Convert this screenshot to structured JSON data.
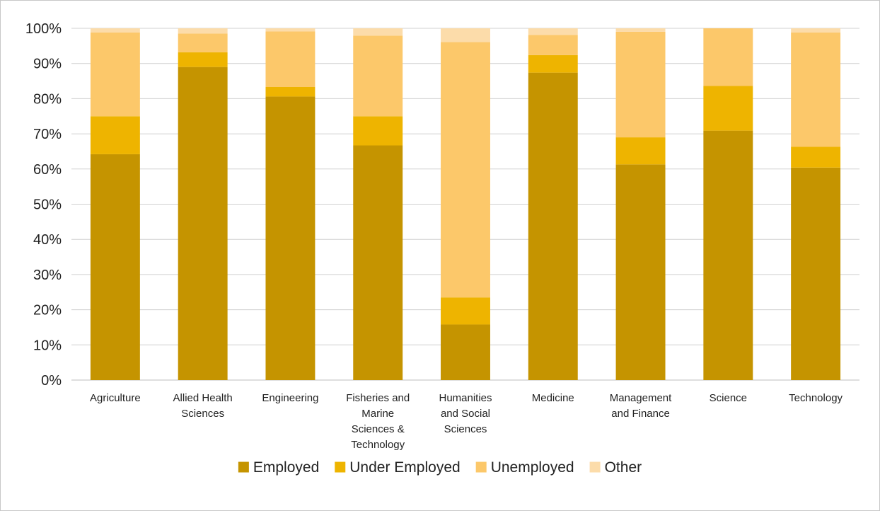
{
  "chart_data": {
    "type": "bar",
    "stacked": true,
    "percent_stacked": true,
    "categories": [
      "Agriculture",
      "Allied Health Sciences",
      "Engineering",
      "Fisheries and Marine Sciences & Technology",
      "Humanities and Social Sciences",
      "Medicine",
      "Management and Finance",
      "Science",
      "Technology"
    ],
    "category_label_lines": [
      [
        "Agriculture"
      ],
      [
        "Allied Health",
        "Sciences"
      ],
      [
        "Engineering"
      ],
      [
        "Fisheries and",
        "Marine",
        "Sciences &",
        "Technology"
      ],
      [
        "Humanities",
        "and Social",
        "Sciences"
      ],
      [
        "Medicine"
      ],
      [
        "Management",
        "and Finance"
      ],
      [
        "Science"
      ],
      [
        "Technology"
      ]
    ],
    "series": [
      {
        "name": "Employed",
        "color": "#c59400",
        "values": [
          64.2,
          89.0,
          80.6,
          66.7,
          15.8,
          87.4,
          61.3,
          70.9,
          60.4
        ]
      },
      {
        "name": "Under Employed",
        "color": "#eeb400",
        "values": [
          10.8,
          4.2,
          2.7,
          8.3,
          7.7,
          5.0,
          7.7,
          12.7,
          5.9
        ]
      },
      {
        "name": "Unemployed",
        "color": "#fcc86a",
        "values": [
          23.8,
          5.3,
          15.8,
          22.9,
          72.6,
          5.7,
          30.0,
          16.4,
          32.5
        ]
      },
      {
        "name": "Other",
        "color": "#fcdcaa",
        "values": [
          1.2,
          1.5,
          0.9,
          2.1,
          3.9,
          1.9,
          1.0,
          0.0,
          1.2
        ]
      }
    ],
    "ylim": [
      0,
      100
    ],
    "yticks": [
      "0%",
      "10%",
      "20%",
      "30%",
      "40%",
      "50%",
      "60%",
      "70%",
      "80%",
      "90%",
      "100%"
    ],
    "grid": true,
    "legend_position": "bottom",
    "title": "",
    "xlabel": "",
    "ylabel": ""
  }
}
